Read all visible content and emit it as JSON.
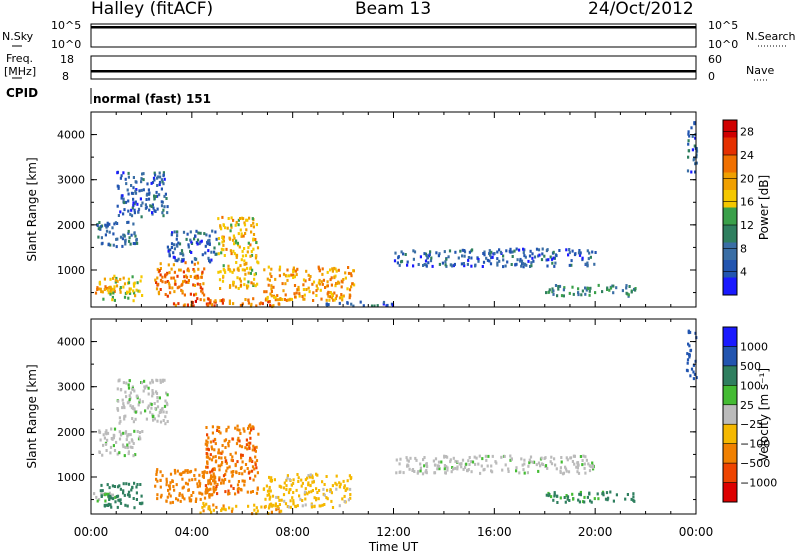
{
  "header": {
    "station": "Halley (fitACF)",
    "beam": "Beam 13",
    "date": "24/Oct/2012"
  },
  "top_panels": {
    "nsky_label": "N.Sky",
    "nsky_ticks": [
      "10^5",
      "10^0"
    ],
    "nsearch_label": "N.Search",
    "nsearch_ticks": [
      "10^5",
      "10^0"
    ],
    "freq_label": "Freq.",
    "freq_unit": "[MHz]",
    "freq_ticks": [
      "18",
      "8"
    ],
    "nave_label": "Nave",
    "nave_ticks": [
      "60",
      "0"
    ],
    "cpid_label": "CPID",
    "cpid_value": "normal (fast) 151"
  },
  "colors": {
    "power_scale": [
      "#1a1aff",
      "#2255b0",
      "#3a6ea5",
      "#2f7f5f",
      "#3aa04a",
      "#f5c800",
      "#f0a000",
      "#f07000",
      "#e53000",
      "#d00000"
    ],
    "velocity_scale": [
      "#1a1aff",
      "#2255b0",
      "#2f7f5f",
      "#44bb33",
      "#bbbbbb",
      "#f5b800",
      "#f08000",
      "#ee4400",
      "#dd0000"
    ]
  },
  "chart_data": [
    {
      "type": "heatmap",
      "name": "power",
      "ylabel": "Slant Range [km]",
      "xlabel": "Time UT",
      "x_ticks": [
        "00:00",
        "04:00",
        "08:00",
        "12:00",
        "16:00",
        "20:00",
        "00:00"
      ],
      "xlim_hours": [
        0,
        24
      ],
      "y_ticks": [
        1000,
        2000,
        3000,
        4000
      ],
      "ylim_km": [
        180,
        4500
      ],
      "colorbar": {
        "label": "Power [dB]",
        "ticks": [
          "4",
          "8",
          "12",
          "16",
          "20",
          "24",
          "28"
        ],
        "range": [
          0,
          30
        ]
      },
      "regions": [
        {
          "t0": 0.0,
          "t1": 0.9,
          "r0": 500,
          "r1": 680,
          "value": 20
        },
        {
          "t0": 0.3,
          "t1": 2.0,
          "r0": 350,
          "r1": 900,
          "value": 16
        },
        {
          "t0": 0.2,
          "t1": 1.8,
          "r0": 1500,
          "r1": 2100,
          "value": 7
        },
        {
          "t0": 1.0,
          "t1": 3.0,
          "r0": 2200,
          "r1": 3200,
          "value": 6
        },
        {
          "t0": 2.5,
          "t1": 4.5,
          "r0": 450,
          "r1": 1200,
          "value": 22
        },
        {
          "t0": 3.0,
          "t1": 5.0,
          "r0": 1200,
          "r1": 1900,
          "value": 6
        },
        {
          "t0": 3.2,
          "t1": 5.2,
          "r0": 220,
          "r1": 400,
          "value": 24
        },
        {
          "t0": 5.0,
          "t1": 6.6,
          "r0": 600,
          "r1": 2200,
          "value": 18
        },
        {
          "t0": 4.3,
          "t1": 7.8,
          "r0": 220,
          "r1": 400,
          "value": 22
        },
        {
          "t0": 6.8,
          "t1": 10.4,
          "r0": 350,
          "r1": 1100,
          "value": 20
        },
        {
          "t0": 9.0,
          "t1": 12.0,
          "r0": 230,
          "r1": 330,
          "value": 6
        },
        {
          "t0": 12.0,
          "t1": 20.0,
          "r0": 1100,
          "r1": 1500,
          "value": 6
        },
        {
          "t0": 18.0,
          "t1": 21.7,
          "r0": 450,
          "r1": 700,
          "value": 10
        },
        {
          "t0": 23.6,
          "t1": 24.0,
          "r0": 3200,
          "r1": 4300,
          "value": 6
        }
      ]
    },
    {
      "type": "heatmap",
      "name": "velocity",
      "ylabel": "Slant Range [km]",
      "xlabel": "Time UT",
      "x_ticks": [
        "00:00",
        "04:00",
        "08:00",
        "12:00",
        "16:00",
        "20:00",
        "00:00"
      ],
      "xlim_hours": [
        0,
        24
      ],
      "y_ticks": [
        1000,
        2000,
        3000,
        4000
      ],
      "ylim_km": [
        180,
        4500
      ],
      "colorbar": {
        "label": "Velocity [m s⁻¹]",
        "ticks": [
          "1000",
          "500",
          "100",
          "25",
          "−25",
          "−100",
          "−500",
          "−1000"
        ],
        "range": [
          -1000,
          1000
        ]
      },
      "regions": [
        {
          "t0": 0.0,
          "t1": 1.0,
          "r0": 500,
          "r1": 700,
          "value": 20
        },
        {
          "t0": 0.3,
          "t1": 2.0,
          "r0": 350,
          "r1": 900,
          "value": 80
        },
        {
          "t0": 0.2,
          "t1": 2.0,
          "r0": 1500,
          "r1": 2100,
          "value": 10
        },
        {
          "t0": 1.0,
          "t1": 3.0,
          "r0": 2200,
          "r1": 3200,
          "value": 10
        },
        {
          "t0": 2.5,
          "t1": 5.0,
          "r0": 450,
          "r1": 1200,
          "value": -80
        },
        {
          "t0": 4.5,
          "t1": 6.6,
          "r0": 600,
          "r1": 2200,
          "value": -90
        },
        {
          "t0": 4.3,
          "t1": 7.5,
          "r0": 220,
          "r1": 450,
          "value": -50
        },
        {
          "t0": 6.8,
          "t1": 10.3,
          "r0": 350,
          "r1": 1100,
          "value": -40
        },
        {
          "t0": 12.0,
          "t1": 20.0,
          "r0": 1100,
          "r1": 1500,
          "value": 10
        },
        {
          "t0": 18.0,
          "t1": 21.7,
          "r0": 450,
          "r1": 700,
          "value": 60
        },
        {
          "t0": 23.6,
          "t1": 24.0,
          "r0": 3200,
          "r1": 4300,
          "value": 300
        }
      ]
    }
  ]
}
